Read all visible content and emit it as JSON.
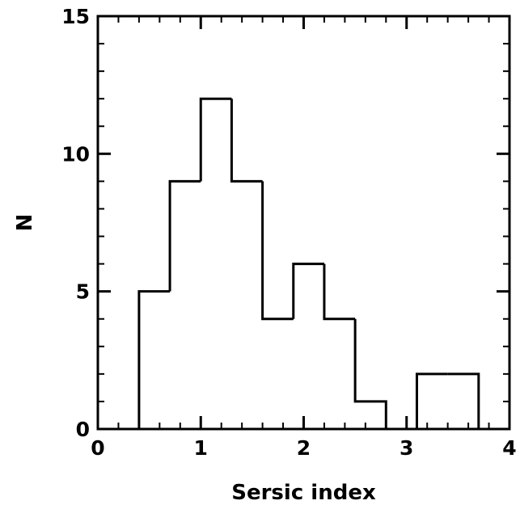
{
  "chart_data": {
    "type": "bar",
    "subtype": "step-histogram",
    "title": "",
    "xlabel": "Sersic index",
    "ylabel": "N",
    "xlim": [
      0,
      4
    ],
    "ylim": [
      0,
      15
    ],
    "bin_edges": [
      0.4,
      0.7,
      1.0,
      1.3,
      1.6,
      1.9,
      2.2,
      2.5,
      2.8,
      3.1,
      3.4,
      3.7
    ],
    "values": [
      5,
      9,
      12,
      9,
      4,
      6,
      4,
      1,
      0,
      2,
      2
    ],
    "x_ticks": [
      "0",
      "1",
      "2",
      "3",
      "4"
    ],
    "y_ticks": [
      "0",
      "5",
      "10",
      "15"
    ],
    "x_minor_step": 0.2,
    "y_minor_step": 1,
    "grid": false,
    "legend": "none",
    "line_color": "#000000",
    "background_color": "#ffffff"
  }
}
